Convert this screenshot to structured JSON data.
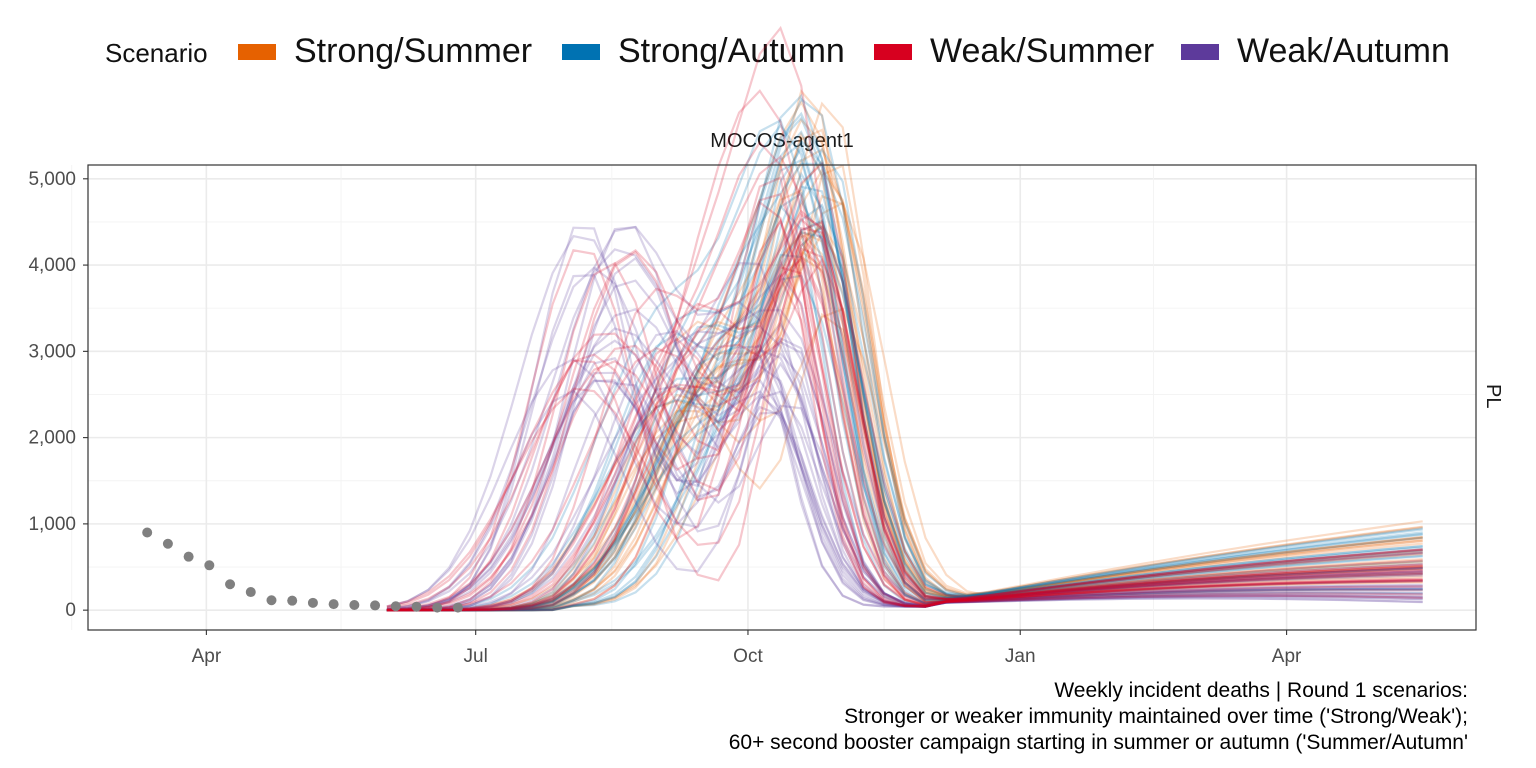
{
  "legend": {
    "title": "Scenario",
    "items": [
      {
        "label": "Strong/Summer",
        "color": "#E66100"
      },
      {
        "label": "Strong/Autumn",
        "color": "#0072B2"
      },
      {
        "label": "Weak/Summer",
        "color": "#D7001F"
      },
      {
        "label": "Weak/Autumn",
        "color": "#5D3A9B"
      }
    ]
  },
  "facet_title": "MOCOS-agent1",
  "strip_label": "PL",
  "caption": {
    "line1": "Weekly incident deaths | Round 1 scenarios:",
    "line2": "Stronger or weaker immunity maintained over time ('Strong/Weak');",
    "line3": "60+ second booster campaign starting in summer or autumn ('Summer/Autumn'"
  },
  "chart_data": {
    "type": "line",
    "title": "MOCOS-agent1",
    "xlabel": "",
    "ylabel": "",
    "xlim": [
      "2022-02-20",
      "2023-06-04"
    ],
    "ylim": [
      -230,
      5160
    ],
    "y_ticks": [
      0,
      1000,
      2000,
      3000,
      4000,
      5000
    ],
    "y_tick_labels": [
      "0",
      "1,000",
      "2,000",
      "3,000",
      "4,000",
      "5,000"
    ],
    "x_ticks": [
      "2022-04-01",
      "2022-07-01",
      "2022-10-01",
      "2023-01-01",
      "2023-04-01"
    ],
    "x_tick_labels": [
      "Apr",
      "Jul",
      "Oct",
      "Jan",
      "Apr"
    ],
    "grid": true,
    "legend_position": "top",
    "observed": {
      "color": "#808080",
      "x": [
        "2022-03-12",
        "2022-03-19",
        "2022-03-26",
        "2022-04-02",
        "2022-04-09",
        "2022-04-16",
        "2022-04-23",
        "2022-04-30",
        "2022-05-07",
        "2022-05-14",
        "2022-05-21",
        "2022-05-28",
        "2022-06-04",
        "2022-06-11",
        "2022-06-18",
        "2022-06-25"
      ],
      "values": [
        900,
        770,
        620,
        520,
        300,
        210,
        115,
        110,
        85,
        70,
        60,
        55,
        45,
        40,
        30,
        30
      ]
    },
    "series": [
      {
        "name": "Strong/Summer",
        "color": "#E66100",
        "peak1_range": [
          "2022-09-05",
          "2022-10-05"
        ],
        "peak1_max": 3500,
        "peak2_range": [
          "2022-10-15",
          "2022-11-05"
        ],
        "peak2_max": 4800,
        "end_value_range": [
          300,
          1060
        ]
      },
      {
        "name": "Strong/Autumn",
        "color": "#0072B2",
        "peak1_range": [
          "2022-09-05",
          "2022-10-05"
        ],
        "peak1_max": 3500,
        "peak2_range": [
          "2022-10-12",
          "2022-11-01"
        ],
        "peak2_max": 4900,
        "end_value_range": [
          150,
          950
        ]
      },
      {
        "name": "Weak/Summer",
        "color": "#D7001F",
        "peak1_range": [
          "2022-08-05",
          "2022-09-25"
        ],
        "peak1_max": 4200,
        "peak2_range": [
          "2022-10-05",
          "2022-10-30"
        ],
        "peak2_max": 4700,
        "end_value_range": [
          70,
          700
        ]
      },
      {
        "name": "Weak/Autumn",
        "color": "#5D3A9B",
        "peak1_range": [
          "2022-08-01",
          "2022-09-15"
        ],
        "peak1_max": 4500,
        "peak2_range": [
          "2022-10-01",
          "2022-10-20"
        ],
        "peak2_max": 3200,
        "end_value_range": [
          60,
          520
        ]
      }
    ],
    "series_start": "2022-06-01",
    "series_end": "2023-05-20"
  }
}
